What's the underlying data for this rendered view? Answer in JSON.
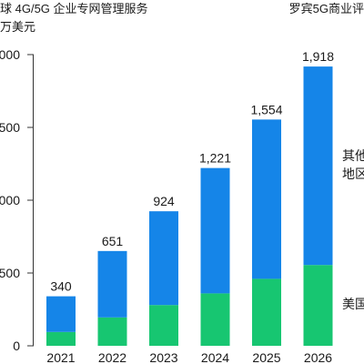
{
  "header": {
    "title": "球 4G/5G 企业专网管理服务",
    "unit": "万美元",
    "source": "罗宾5G商业评"
  },
  "chart_data": {
    "type": "bar",
    "stacked": true,
    "categories": [
      "2021",
      "2022",
      "2023",
      "2024",
      "2025",
      "2026"
    ],
    "series": [
      {
        "name": "美国",
        "values": [
          95,
          195,
          280,
          360,
          460,
          555
        ],
        "color": "#17c671"
      },
      {
        "name": "其他地区",
        "values": [
          245,
          456,
          644,
          861,
          1094,
          1363
        ],
        "color": "#1585e8"
      }
    ],
    "totals": [
      "340",
      "651",
      "924",
      "1,221",
      "1,554",
      "1,918"
    ],
    "ylim": [
      0,
      2000
    ],
    "yticks": [
      "0",
      "500",
      "000",
      "500",
      "000"
    ],
    "legend_lines": {
      "其他地区": [
        "其他",
        "地区"
      ],
      "美国": [
        "美国"
      ]
    },
    "grid": false,
    "legend_position": "right"
  }
}
